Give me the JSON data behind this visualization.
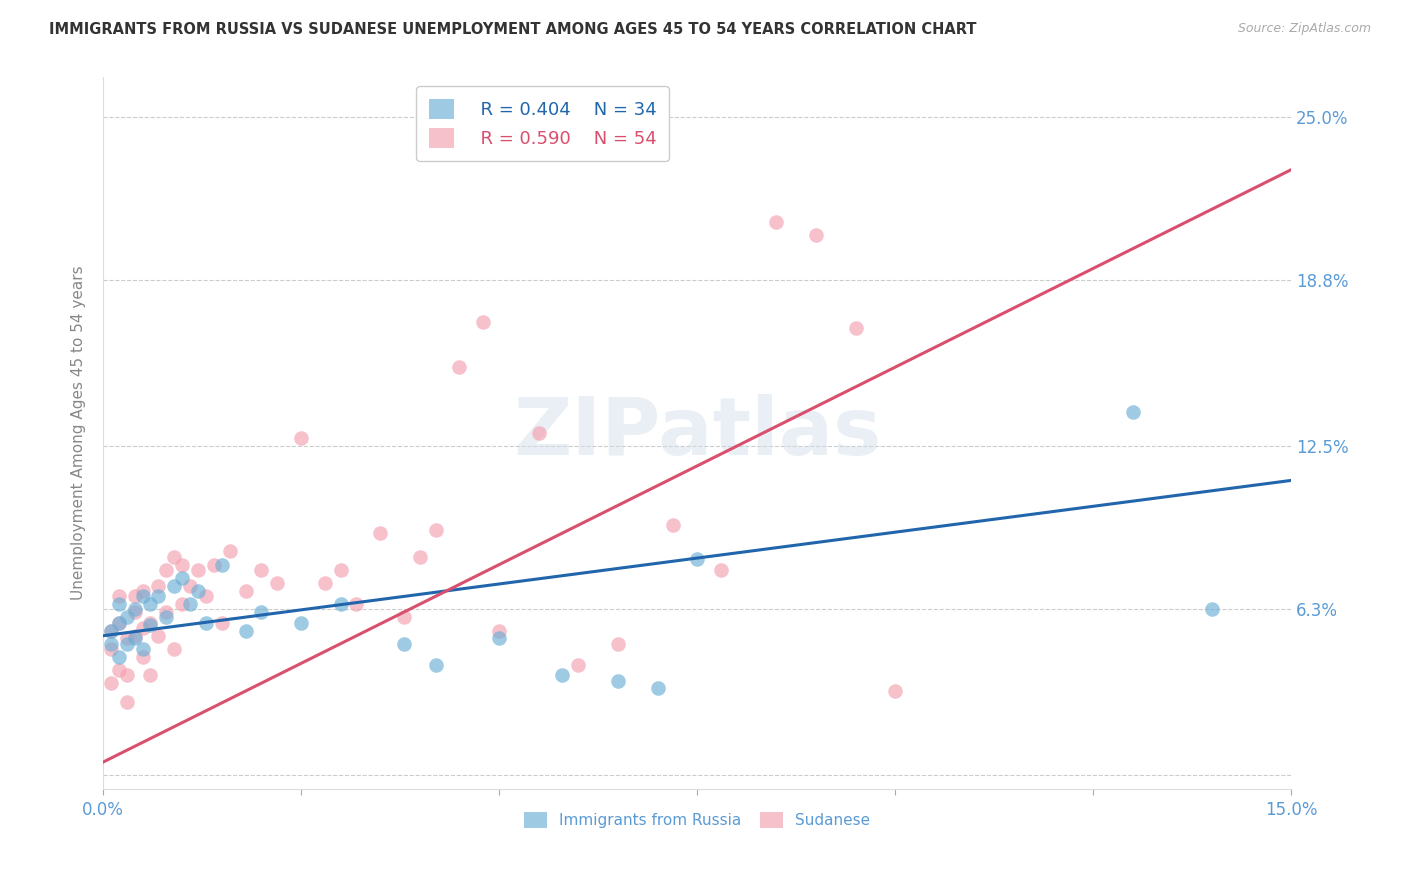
{
  "title": "IMMIGRANTS FROM RUSSIA VS SUDANESE UNEMPLOYMENT AMONG AGES 45 TO 54 YEARS CORRELATION CHART",
  "source": "Source: ZipAtlas.com",
  "ylabel": "Unemployment Among Ages 45 to 54 years",
  "xlim": [
    0.0,
    0.15
  ],
  "ylim": [
    -0.005,
    0.265
  ],
  "xticks": [
    0.0,
    0.025,
    0.05,
    0.075,
    0.1,
    0.125,
    0.15
  ],
  "xticklabels": [
    "0.0%",
    "",
    "",
    "",
    "",
    "",
    "15.0%"
  ],
  "yticks_right": [
    0.0,
    0.063,
    0.125,
    0.188,
    0.25
  ],
  "yticklabels_right": [
    "",
    "6.3%",
    "12.5%",
    "18.8%",
    "25.0%"
  ],
  "russia_color": "#6baed6",
  "sudanese_color": "#f4a0b0",
  "russia_line_color": "#2166ac",
  "sudanese_line_color": "#d94f6e",
  "watermark_text": "ZIPatlas",
  "russia_R": "0.404",
  "russia_N": "34",
  "sudanese_R": "0.590",
  "sudanese_N": "54",
  "russia_scatter_x": [
    0.001,
    0.001,
    0.002,
    0.002,
    0.002,
    0.003,
    0.003,
    0.004,
    0.004,
    0.005,
    0.005,
    0.006,
    0.006,
    0.007,
    0.008,
    0.009,
    0.01,
    0.011,
    0.012,
    0.013,
    0.015,
    0.018,
    0.02,
    0.025,
    0.03,
    0.038,
    0.042,
    0.05,
    0.058,
    0.065,
    0.07,
    0.075,
    0.13,
    0.14
  ],
  "russia_scatter_y": [
    0.05,
    0.055,
    0.045,
    0.058,
    0.065,
    0.05,
    0.06,
    0.052,
    0.063,
    0.048,
    0.068,
    0.057,
    0.065,
    0.068,
    0.06,
    0.072,
    0.075,
    0.065,
    0.07,
    0.058,
    0.08,
    0.055,
    0.062,
    0.058,
    0.065,
    0.05,
    0.042,
    0.052,
    0.038,
    0.036,
    0.033,
    0.082,
    0.138,
    0.063
  ],
  "sudanese_scatter_x": [
    0.001,
    0.001,
    0.001,
    0.002,
    0.002,
    0.002,
    0.003,
    0.003,
    0.003,
    0.004,
    0.004,
    0.004,
    0.005,
    0.005,
    0.005,
    0.006,
    0.006,
    0.007,
    0.007,
    0.008,
    0.008,
    0.009,
    0.009,
    0.01,
    0.01,
    0.011,
    0.012,
    0.013,
    0.014,
    0.015,
    0.016,
    0.018,
    0.02,
    0.022,
    0.025,
    0.028,
    0.03,
    0.032,
    0.035,
    0.038,
    0.04,
    0.042,
    0.045,
    0.048,
    0.05,
    0.055,
    0.06,
    0.065,
    0.072,
    0.078,
    0.085,
    0.09,
    0.095,
    0.1
  ],
  "sudanese_scatter_y": [
    0.055,
    0.048,
    0.035,
    0.04,
    0.058,
    0.068,
    0.038,
    0.052,
    0.028,
    0.053,
    0.062,
    0.068,
    0.045,
    0.056,
    0.07,
    0.038,
    0.058,
    0.053,
    0.072,
    0.062,
    0.078,
    0.048,
    0.083,
    0.065,
    0.08,
    0.072,
    0.078,
    0.068,
    0.08,
    0.058,
    0.085,
    0.07,
    0.078,
    0.073,
    0.128,
    0.073,
    0.078,
    0.065,
    0.092,
    0.06,
    0.083,
    0.093,
    0.155,
    0.172,
    0.055,
    0.13,
    0.042,
    0.05,
    0.095,
    0.078,
    0.21,
    0.205,
    0.17,
    0.032
  ],
  "russia_line_x": [
    0.0,
    0.15
  ],
  "russia_line_y": [
    0.053,
    0.112
  ],
  "sudanese_line_x": [
    0.0,
    0.15
  ],
  "sudanese_line_y": [
    0.005,
    0.23
  ],
  "background_color": "#ffffff",
  "grid_color": "#cccccc",
  "title_color": "#333333",
  "tick_label_color": "#5b9bd5",
  "axis_label_color": "#888888",
  "source_color": "#aaaaaa"
}
